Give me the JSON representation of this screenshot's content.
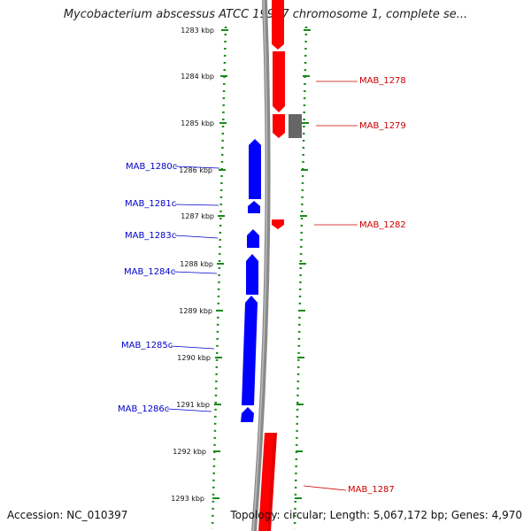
{
  "title": "Mycobacterium abscessus ATCC 19977 chromosome 1, complete se...",
  "footer": {
    "accession": "Accession: NC_010397",
    "summary": "Topology: circular; Length: 5,067,172 bp; Genes: 4,970"
  },
  "ruler_labels": [
    "1283 kbp",
    "1284 kbp",
    "1285 kbp",
    "1286 kbp",
    "1287 kbp",
    "1288 kbp",
    "1289 kbp",
    "1290 kbp",
    "1291 kbp",
    "1292 kbp",
    "1293 kbp"
  ],
  "genes": [
    {
      "name": "MAB_1278",
      "strand": "forward"
    },
    {
      "name": "MAB_1279",
      "strand": "forward"
    },
    {
      "name": "MAB_1280c",
      "strand": "reverse"
    },
    {
      "name": "MAB_1281c",
      "strand": "reverse"
    },
    {
      "name": "MAB_1282",
      "strand": "forward"
    },
    {
      "name": "MAB_1283c",
      "strand": "reverse"
    },
    {
      "name": "MAB_1284c",
      "strand": "reverse"
    },
    {
      "name": "MAB_1285c",
      "strand": "reverse"
    },
    {
      "name": "MAB_1286c",
      "strand": "reverse"
    },
    {
      "name": "MAB_1287",
      "strand": "forward"
    }
  ],
  "colors": {
    "forward": "#ff0000",
    "reverse": "#0000ff",
    "other": "#666666",
    "backbone": "#8a8a8a",
    "ruler": "#1a8a1a",
    "forward_label": "#cc0000",
    "reverse_label": "#0000cc"
  }
}
